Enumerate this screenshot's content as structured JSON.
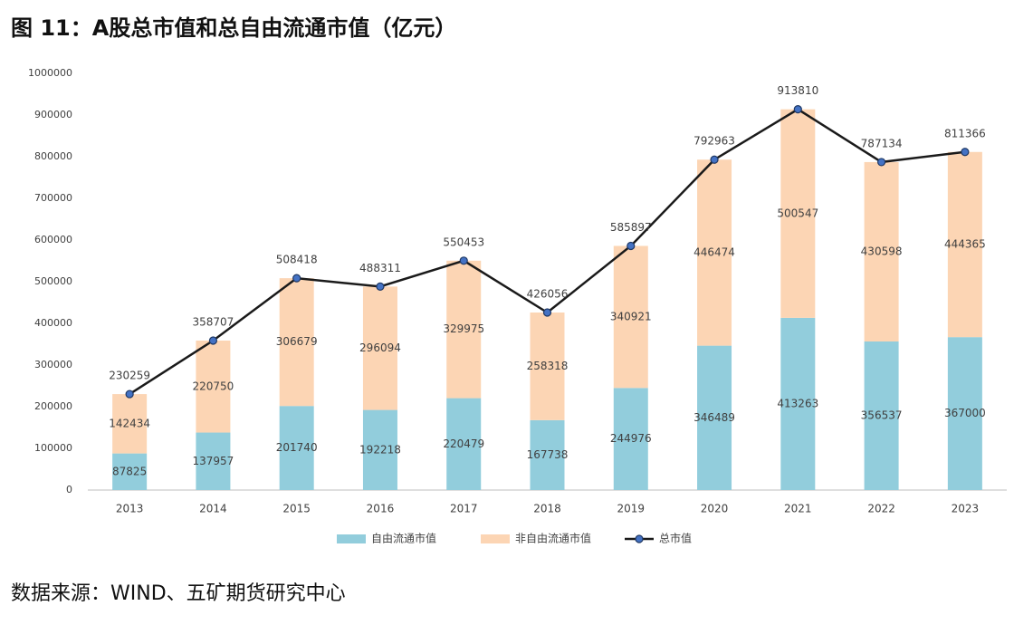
{
  "chart_data": {
    "type": "bar",
    "stacked": true,
    "title": "图 11：A股总市值和总自由流通市值（亿元）",
    "source": "数据来源：WIND、五矿期货研究中心",
    "categories": [
      "2013",
      "2014",
      "2015",
      "2016",
      "2017",
      "2018",
      "2019",
      "2020",
      "2021",
      "2022",
      "2023"
    ],
    "series": [
      {
        "name": "自由流通市值",
        "type": "bar",
        "color": "#92cddc",
        "values": [
          87825,
          137957,
          201740,
          192218,
          220479,
          167738,
          244976,
          346489,
          413263,
          356537,
          367000
        ]
      },
      {
        "name": "非自由流通市值",
        "type": "bar",
        "color": "#fcd5b4",
        "values": [
          142434,
          220750,
          306679,
          296094,
          329975,
          258318,
          340921,
          446474,
          500547,
          430598,
          444365
        ]
      },
      {
        "name": "总市值",
        "type": "line",
        "color": "#1a1a1a",
        "marker_color": "#4472c4",
        "values": [
          230259,
          358707,
          508418,
          488311,
          550453,
          426056,
          585897,
          792963,
          913810,
          787134,
          811366
        ]
      }
    ],
    "ylim": [
      0,
      1000000
    ],
    "yticks": [
      0,
      100000,
      200000,
      300000,
      400000,
      500000,
      600000,
      700000,
      800000,
      900000,
      1000000
    ],
    "grid": false,
    "legend": "bottom"
  }
}
